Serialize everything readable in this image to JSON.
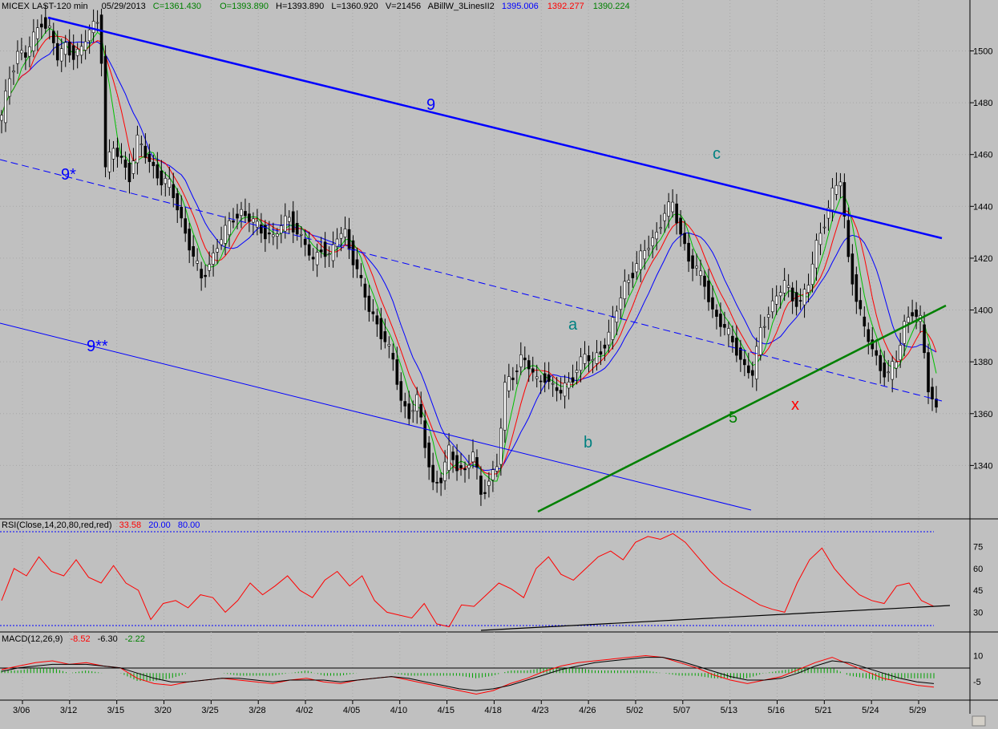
{
  "header": {
    "symbol": "MICEX LAST-120 min",
    "date": "05/29/2013",
    "close": "C=1361.430",
    "open": "O=1393.890",
    "high": "H=1393.890",
    "low": "L=1360.920",
    "volume": "V=21456",
    "indicator": "ABillW_3LinesII2",
    "line_blue": "1395.006",
    "line_red": "1392.277",
    "line_green": "1390.224"
  },
  "rsi_header": {
    "label": "RSI(Close,14,20,80,red,red)",
    "value": "33.58",
    "low": "20.00",
    "high": "80.00"
  },
  "macd_header": {
    "label": "MACD(12,26,9)",
    "macd": "-8.52",
    "signal": "-6.30",
    "hist": "-2.22"
  },
  "colors": {
    "background": "#c0c0c0",
    "grid": "#a8a8a8",
    "blue_line": "#0000ff",
    "red_line": "#ff0000",
    "green_line": "#00c000",
    "trend_green": "#008000",
    "annotation_teal": "#008080",
    "annotation_red": "#ff0000",
    "annotation_blue": "#0000ff"
  },
  "annotations": {
    "a": "a",
    "b": "b",
    "c": "c",
    "x": "x",
    "five": "5",
    "nine": "9",
    "nine_star": "9*",
    "nine_double_star": "9**"
  },
  "chart_data": [
    {
      "type": "candlestick",
      "title": "MICEX LAST-120 min",
      "x": [
        "3/06",
        "3/12",
        "3/15",
        "3/20",
        "3/25",
        "3/28",
        "4/02",
        "4/05",
        "4/10",
        "4/15",
        "4/18",
        "4/23",
        "4/26",
        "5/02",
        "5/07",
        "5/13",
        "5/16",
        "5/21",
        "5/24",
        "5/29"
      ],
      "ylim": [
        1320,
        1515
      ],
      "yticks": [
        1340,
        1360,
        1380,
        1400,
        1420,
        1440,
        1460,
        1480,
        1500
      ],
      "close_path": [
        [
          0,
          1474
        ],
        [
          2,
          1490
        ],
        [
          4,
          1500
        ],
        [
          6,
          1498
        ],
        [
          8,
          1505
        ],
        [
          10,
          1512
        ],
        [
          12,
          1508
        ],
        [
          14,
          1497
        ],
        [
          16,
          1502
        ],
        [
          18,
          1499
        ],
        [
          20,
          1500
        ],
        [
          22,
          1508
        ],
        [
          24,
          1512
        ],
        [
          25,
          1498
        ],
        [
          26,
          1455
        ],
        [
          28,
          1462
        ],
        [
          30,
          1458
        ],
        [
          32,
          1452
        ],
        [
          34,
          1465
        ],
        [
          36,
          1460
        ],
        [
          38,
          1455
        ],
        [
          40,
          1450
        ],
        [
          42,
          1448
        ],
        [
          44,
          1440
        ],
        [
          46,
          1430
        ],
        [
          48,
          1420
        ],
        [
          50,
          1412
        ],
        [
          52,
          1418
        ],
        [
          54,
          1425
        ],
        [
          56,
          1430
        ],
        [
          58,
          1436
        ],
        [
          60,
          1438
        ],
        [
          62,
          1435
        ],
        [
          64,
          1432
        ],
        [
          66,
          1430
        ],
        [
          68,
          1428
        ],
        [
          70,
          1432
        ],
        [
          72,
          1436
        ],
        [
          74,
          1430
        ],
        [
          76,
          1425
        ],
        [
          78,
          1418
        ],
        [
          80,
          1425
        ],
        [
          82,
          1420
        ],
        [
          84,
          1428
        ],
        [
          86,
          1430
        ],
        [
          88,
          1420
        ],
        [
          90,
          1410
        ],
        [
          92,
          1400
        ],
        [
          94,
          1395
        ],
        [
          96,
          1388
        ],
        [
          98,
          1380
        ],
        [
          100,
          1365
        ],
        [
          102,
          1360
        ],
        [
          104,
          1365
        ],
        [
          106,
          1348
        ],
        [
          108,
          1333
        ],
        [
          110,
          1335
        ],
        [
          112,
          1345
        ],
        [
          114,
          1340
        ],
        [
          116,
          1338
        ],
        [
          118,
          1345
        ],
        [
          120,
          1328
        ],
        [
          122,
          1335
        ],
        [
          124,
          1340
        ],
        [
          126,
          1370
        ],
        [
          128,
          1375
        ],
        [
          130,
          1382
        ],
        [
          132,
          1378
        ],
        [
          134,
          1372
        ],
        [
          136,
          1375
        ],
        [
          138,
          1370
        ],
        [
          140,
          1368
        ],
        [
          142,
          1372
        ],
        [
          144,
          1378
        ],
        [
          146,
          1382
        ],
        [
          148,
          1380
        ],
        [
          150,
          1385
        ],
        [
          152,
          1390
        ],
        [
          154,
          1400
        ],
        [
          156,
          1410
        ],
        [
          158,
          1415
        ],
        [
          160,
          1420
        ],
        [
          162,
          1425
        ],
        [
          164,
          1430
        ],
        [
          166,
          1438
        ],
        [
          168,
          1440
        ],
        [
          170,
          1430
        ],
        [
          172,
          1420
        ],
        [
          174,
          1415
        ],
        [
          176,
          1410
        ],
        [
          178,
          1400
        ],
        [
          180,
          1395
        ],
        [
          182,
          1390
        ],
        [
          184,
          1385
        ],
        [
          186,
          1378
        ],
        [
          188,
          1375
        ],
        [
          190,
          1392
        ],
        [
          192,
          1400
        ],
        [
          194,
          1405
        ],
        [
          196,
          1410
        ],
        [
          198,
          1405
        ],
        [
          200,
          1403
        ],
        [
          202,
          1410
        ],
        [
          204,
          1425
        ],
        [
          206,
          1435
        ],
        [
          208,
          1445
        ],
        [
          210,
          1450
        ],
        [
          212,
          1420
        ],
        [
          214,
          1405
        ],
        [
          216,
          1392
        ],
        [
          218,
          1385
        ],
        [
          220,
          1378
        ],
        [
          222,
          1375
        ],
        [
          224,
          1380
        ],
        [
          226,
          1395
        ],
        [
          228,
          1400
        ],
        [
          230,
          1395
        ],
        [
          232,
          1370
        ],
        [
          234,
          1362
        ]
      ],
      "bar_count": 235
    },
    {
      "type": "line",
      "title": "RSI(Close,14,20,80,red,red)",
      "ylim": [
        17,
        88
      ],
      "yticks": [
        30,
        45,
        60,
        75
      ],
      "levels": [
        20,
        80
      ],
      "series": [
        {
          "name": "RSI",
          "color": "#ff0000",
          "values": [
            38,
            60,
            55,
            68,
            58,
            55,
            66,
            54,
            50,
            62,
            50,
            45,
            25,
            36,
            38,
            33,
            42,
            40,
            30,
            38,
            50,
            42,
            48,
            55,
            45,
            40,
            52,
            58,
            48,
            55,
            38,
            30,
            28,
            26,
            36,
            22,
            20,
            35,
            34,
            42,
            50,
            46,
            40,
            60,
            68,
            56,
            52,
            60,
            68,
            72,
            66,
            78,
            82,
            80,
            84,
            78,
            68,
            58,
            50,
            45,
            40,
            35,
            32,
            30,
            50,
            66,
            74,
            60,
            50,
            42,
            38,
            36,
            48,
            50,
            38,
            34
          ]
        },
        {
          "name": "support",
          "color": "#000000",
          "values": [
            20,
            34
          ]
        }
      ]
    },
    {
      "type": "line",
      "title": "MACD(12,26,9)",
      "ylim": [
        -15,
        18
      ],
      "yticks": [
        -5,
        10
      ],
      "zero": 0,
      "series": [
        {
          "name": "MACD",
          "color": "#ff0000",
          "values": [
            2,
            4,
            6,
            7,
            5,
            6,
            4,
            3,
            -3,
            -6,
            -7,
            -5,
            -4,
            -3,
            -4,
            -5,
            -6,
            -4,
            -3,
            -5,
            -6,
            -4,
            -3,
            -2,
            -4,
            -6,
            -8,
            -10,
            -12,
            -10,
            -6,
            -3,
            1,
            4,
            6,
            7,
            8,
            9,
            10,
            9,
            6,
            3,
            -1,
            -4,
            -6,
            -4,
            -2,
            2,
            6,
            9,
            5,
            1,
            -3,
            -5,
            -7,
            -8
          ]
        },
        {
          "name": "Signal",
          "color": "#000000",
          "values": [
            1,
            3,
            4,
            5,
            5,
            5,
            4,
            3,
            0,
            -3,
            -5,
            -5,
            -4,
            -3,
            -3,
            -4,
            -5,
            -4,
            -4,
            -4,
            -5,
            -4,
            -3,
            -2,
            -3,
            -5,
            -7,
            -9,
            -10,
            -9,
            -7,
            -4,
            -1,
            2,
            4,
            6,
            7,
            8,
            9,
            9,
            7,
            4,
            1,
            -2,
            -4,
            -4,
            -3,
            0,
            4,
            7,
            6,
            3,
            0,
            -3,
            -5,
            -6
          ]
        }
      ]
    }
  ]
}
